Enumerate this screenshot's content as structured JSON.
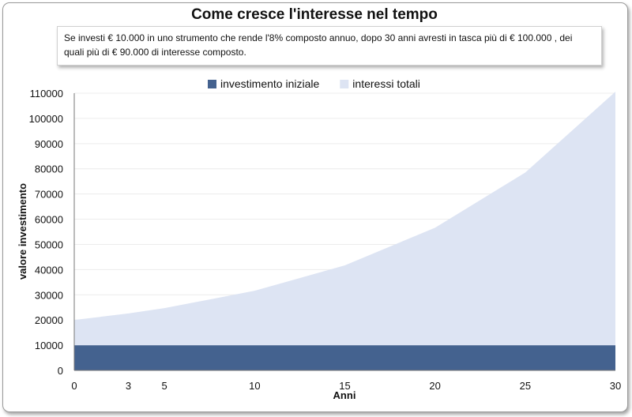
{
  "chart_data": {
    "type": "area",
    "title": "Come cresce l'interesse nel tempo",
    "annotation": "Se investi € 10.000 in uno strumento che rende l'8% composto annuo, dopo 30 anni avresti in tasca più di € 100.000 , dei quali più di  €  90.000 di interesse composto.",
    "xlabel": "Anni",
    "ylabel": "valore investimento",
    "x": [
      "0",
      "3",
      "5",
      "10",
      "15",
      "20",
      "25",
      "30"
    ],
    "ylim": [
      0,
      110000
    ],
    "yticks": [
      "0",
      "10000",
      "20000",
      "30000",
      "40000",
      "50000",
      "60000",
      "70000",
      "80000",
      "90000",
      "100000",
      "110000"
    ],
    "stacked": true,
    "legend_position": "top",
    "grid": true,
    "series": [
      {
        "name": "investimento iniziale",
        "color": "#44628f",
        "values": [
          10000,
          10000,
          10000,
          10000,
          10000,
          10000,
          10000,
          10000
        ]
      },
      {
        "name": "interessi totali",
        "color": "#dde4f3",
        "values": [
          10000,
          12600,
          14700,
          21600,
          31700,
          46600,
          68500,
          100600
        ]
      }
    ]
  }
}
